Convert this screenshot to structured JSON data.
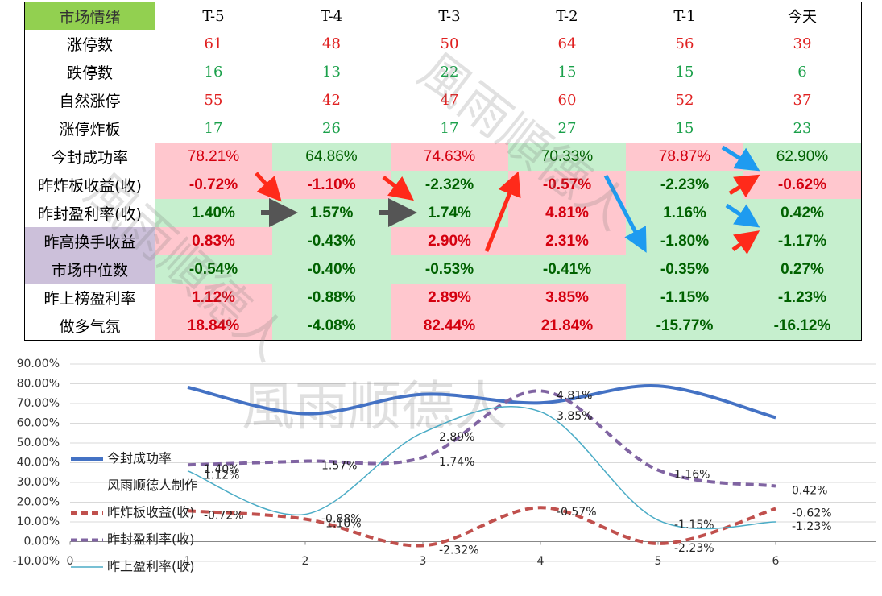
{
  "table": {
    "header": [
      "市场情绪",
      "T-5",
      "T-4",
      "T-3",
      "T-2",
      "T-1",
      "今天"
    ],
    "header_fill": "#92d050",
    "rows": [
      {
        "label": "涨停数",
        "cells": [
          "61",
          "48",
          "50",
          "64",
          "56",
          "39"
        ],
        "color": "#e02020"
      },
      {
        "label": "跌停数",
        "cells": [
          "16",
          "13",
          "22",
          "15",
          "15",
          "6"
        ],
        "color": "#1aa04a"
      },
      {
        "label": "自然涨停",
        "cells": [
          "55",
          "42",
          "47",
          "60",
          "52",
          "37"
        ],
        "color": "#e02020"
      },
      {
        "label": "涨停炸板",
        "cells": [
          "17",
          "26",
          "17",
          "27",
          "15",
          "23"
        ],
        "color": "#1aa04a"
      },
      {
        "label": "今封成功率",
        "cells": [
          "78.21%",
          "64.86%",
          "74.63%",
          "70.33%",
          "78.87%",
          "62.90%"
        ],
        "fills": [
          "#ffc7ce",
          "#c6efce",
          "#ffc7ce",
          "#c6efce",
          "#ffc7ce",
          "#c6efce"
        ],
        "weight": "normal"
      },
      {
        "label": "昨炸板收益(收)",
        "cells": [
          "-0.72%",
          "-1.10%",
          "-2.32%",
          "-0.57%",
          "-2.23%",
          "-0.62%"
        ],
        "fills": [
          "#ffc7ce",
          "#ffc7ce",
          "#c6efce",
          "#ffc7ce",
          "#c6efce",
          "#ffc7ce"
        ]
      },
      {
        "label": "昨封盈利率(收)",
        "cells": [
          "1.40%",
          "1.57%",
          "1.74%",
          "4.81%",
          "1.16%",
          "0.42%"
        ],
        "fills": [
          "#c6efce",
          "#c6efce",
          "#c6efce",
          "#ffc7ce",
          "#c6efce",
          "#c6efce"
        ]
      },
      {
        "label": "昨高换手收益",
        "cells": [
          "0.83%",
          "-0.43%",
          "2.90%",
          "2.31%",
          "-1.80%",
          "-1.17%"
        ],
        "fills": [
          "#ffc7ce",
          "#c6efce",
          "#ffc7ce",
          "#ffc7ce",
          "#c6efce",
          "#c6efce"
        ],
        "label_fill": "#ccc0da"
      },
      {
        "label": "市场中位数",
        "cells": [
          "-0.54%",
          "-0.40%",
          "-0.53%",
          "-0.41%",
          "-0.35%",
          "0.27%"
        ],
        "fills": [
          "#c6efce",
          "#c6efce",
          "#c6efce",
          "#c6efce",
          "#c6efce",
          "#c6efce"
        ],
        "label_fill": "#ccc0da"
      },
      {
        "label": "昨上榜盈利率",
        "cells": [
          "1.12%",
          "-0.88%",
          "2.89%",
          "3.85%",
          "-1.15%",
          "-1.23%"
        ],
        "fills": [
          "#ffc7ce",
          "#c6efce",
          "#ffc7ce",
          "#ffc7ce",
          "#c6efce",
          "#c6efce"
        ]
      },
      {
        "label": "做多气氛",
        "cells": [
          "18.84%",
          "-4.08%",
          "82.44%",
          "21.84%",
          "-15.77%",
          "-16.12%"
        ],
        "fills": [
          "#ffc7ce",
          "#c6efce",
          "#ffc7ce",
          "#ffc7ce",
          "#c6efce",
          "#c6efce"
        ]
      }
    ],
    "watermark": "風雨順德人"
  },
  "chart_data": {
    "type": "line",
    "x": [
      1,
      2,
      3,
      4,
      5,
      6
    ],
    "xlim": [
      0,
      6.85
    ],
    "xticks": [
      0,
      1,
      2,
      3,
      4,
      5,
      6
    ],
    "ylim": [
      -10,
      90
    ],
    "yticks": [
      {
        "value": -10,
        "label": "-10.00%"
      },
      {
        "value": 0,
        "label": "0.00%"
      },
      {
        "value": 10,
        "label": "10.00%"
      },
      {
        "value": 20,
        "label": "20.00%"
      },
      {
        "value": 30,
        "label": "30.00%"
      },
      {
        "value": 40,
        "label": "40.00%"
      },
      {
        "value": 50,
        "label": "50.00%"
      },
      {
        "value": 60,
        "label": "60.00%"
      },
      {
        "value": 70,
        "label": "70.00%"
      },
      {
        "value": 80,
        "label": "80.00%"
      },
      {
        "value": 90,
        "label": "90.00%"
      }
    ],
    "y2lim": [
      -3.05,
      6.05
    ],
    "grid": true,
    "legend": "left",
    "legend_note": "风雨顺德人制作",
    "watermark": "風雨顺德人",
    "series": [
      {
        "name": "今封成功率",
        "color": "#4472c4",
        "width": 4,
        "values": [
          78.21,
          64.86,
          74.63,
          70.33,
          78.87,
          62.9
        ]
      },
      {
        "name": "昨炸板收益(收)",
        "color": "#c0504d",
        "width": 4,
        "dash": true,
        "axis": "y2",
        "values": [
          -0.72,
          -1.1,
          -2.32,
          -0.57,
          -2.23,
          -0.62
        ],
        "value_labels": [
          "-0.72%",
          "-1.10%",
          "-2.32%",
          "-0.57%",
          "-2.23%",
          "-0.62%"
        ]
      },
      {
        "name": "昨封盈利率(收)",
        "color": "#8064a2",
        "width": 4,
        "dash": true,
        "axis": "y2",
        "values": [
          1.4,
          1.57,
          1.74,
          4.81,
          1.16,
          0.42
        ],
        "value_labels": [
          "1.40%",
          "1.57%",
          "1.74%",
          "4.81%",
          "1.16%",
          "0.42%"
        ]
      },
      {
        "name": "昨上盈利率(收)",
        "color": "#4bacc6",
        "width": 1.5,
        "axis": "y2",
        "values": [
          1.12,
          -0.88,
          2.89,
          3.85,
          -1.15,
          -1.23
        ],
        "value_labels": [
          "1.12%",
          "-0.88%",
          "2.89%",
          "3.85%",
          "-1.15%",
          "-1.23%"
        ]
      }
    ]
  }
}
